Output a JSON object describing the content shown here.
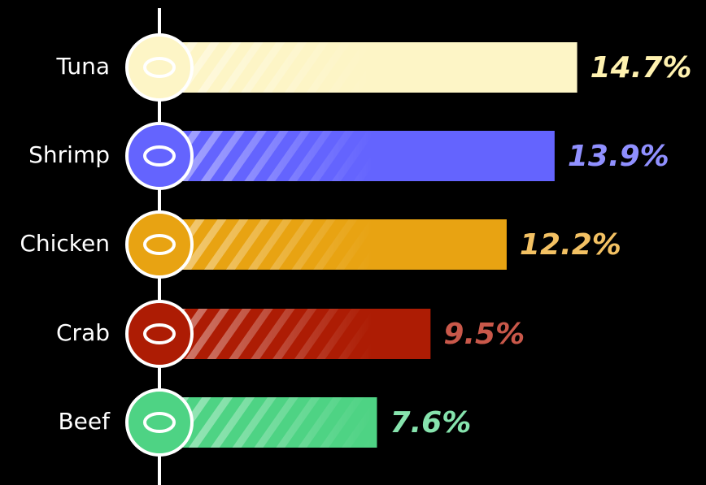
{
  "chart_data": {
    "type": "bar",
    "orientation": "horizontal",
    "categories": [
      "Tuna",
      "Shrimp",
      "Chicken",
      "Crab",
      "Beef"
    ],
    "values": [
      14.7,
      13.9,
      12.2,
      9.5,
      7.6
    ],
    "value_labels": [
      "14.7%",
      "13.9%",
      "12.2%",
      "9.5%",
      "7.6%"
    ],
    "colors": [
      "#fdf5c6",
      "#6464fe",
      "#e8a312",
      "#ad1c04",
      "#4ed384"
    ],
    "label_colors": [
      "#fff2b0",
      "#9090ff",
      "#f3c163",
      "#c9584a",
      "#86e3ad"
    ],
    "xlim": [
      0,
      15
    ]
  }
}
